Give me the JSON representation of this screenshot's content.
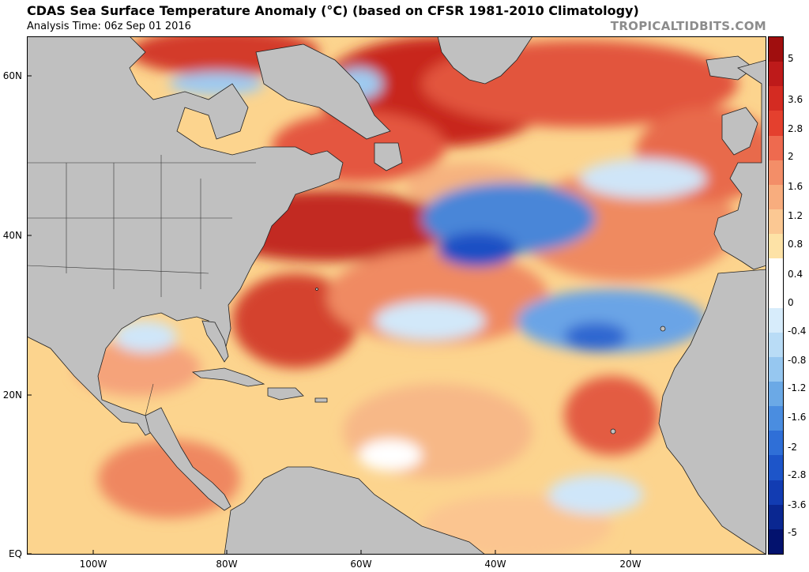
{
  "header": {
    "title": "CDAS Sea Surface Temperature Anomaly (°C) (based on CFSR 1981-2010 Climatology)",
    "subtitle": "Analysis Time: 06z Sep 01 2016",
    "brand": "TROPICALTIDBITS.COM"
  },
  "map": {
    "lat_labels": [
      "60N",
      "40N",
      "20N",
      "EQ"
    ],
    "lon_labels": [
      "100W",
      "80W",
      "60W",
      "40W",
      "20W"
    ],
    "land_color": "#c0c0c0",
    "ocean_base_color": "#fcd48e"
  },
  "colorbar": {
    "labels": [
      "5",
      "3.6",
      "2.8",
      "2",
      "1.6",
      "1.2",
      "0.8",
      "0.4",
      "0",
      "-0.4",
      "-0.8",
      "-1.2",
      "-1.6",
      "-2",
      "-2.8",
      "-3.6",
      "-5"
    ],
    "colors": [
      "#a00e0e",
      "#be1a1a",
      "#d42b22",
      "#e4402e",
      "#ee6a4f",
      "#f38e68",
      "#f8ad7e",
      "#fbc893",
      "#fde2a6",
      "#ffffff",
      "#ffffff",
      "#d7ecfb",
      "#b9dcf6",
      "#96c7f0",
      "#6ba9e6",
      "#4a8de0",
      "#2f6fd7",
      "#1d55c9",
      "#123cb2",
      "#0a2791",
      "#03126e"
    ]
  }
}
